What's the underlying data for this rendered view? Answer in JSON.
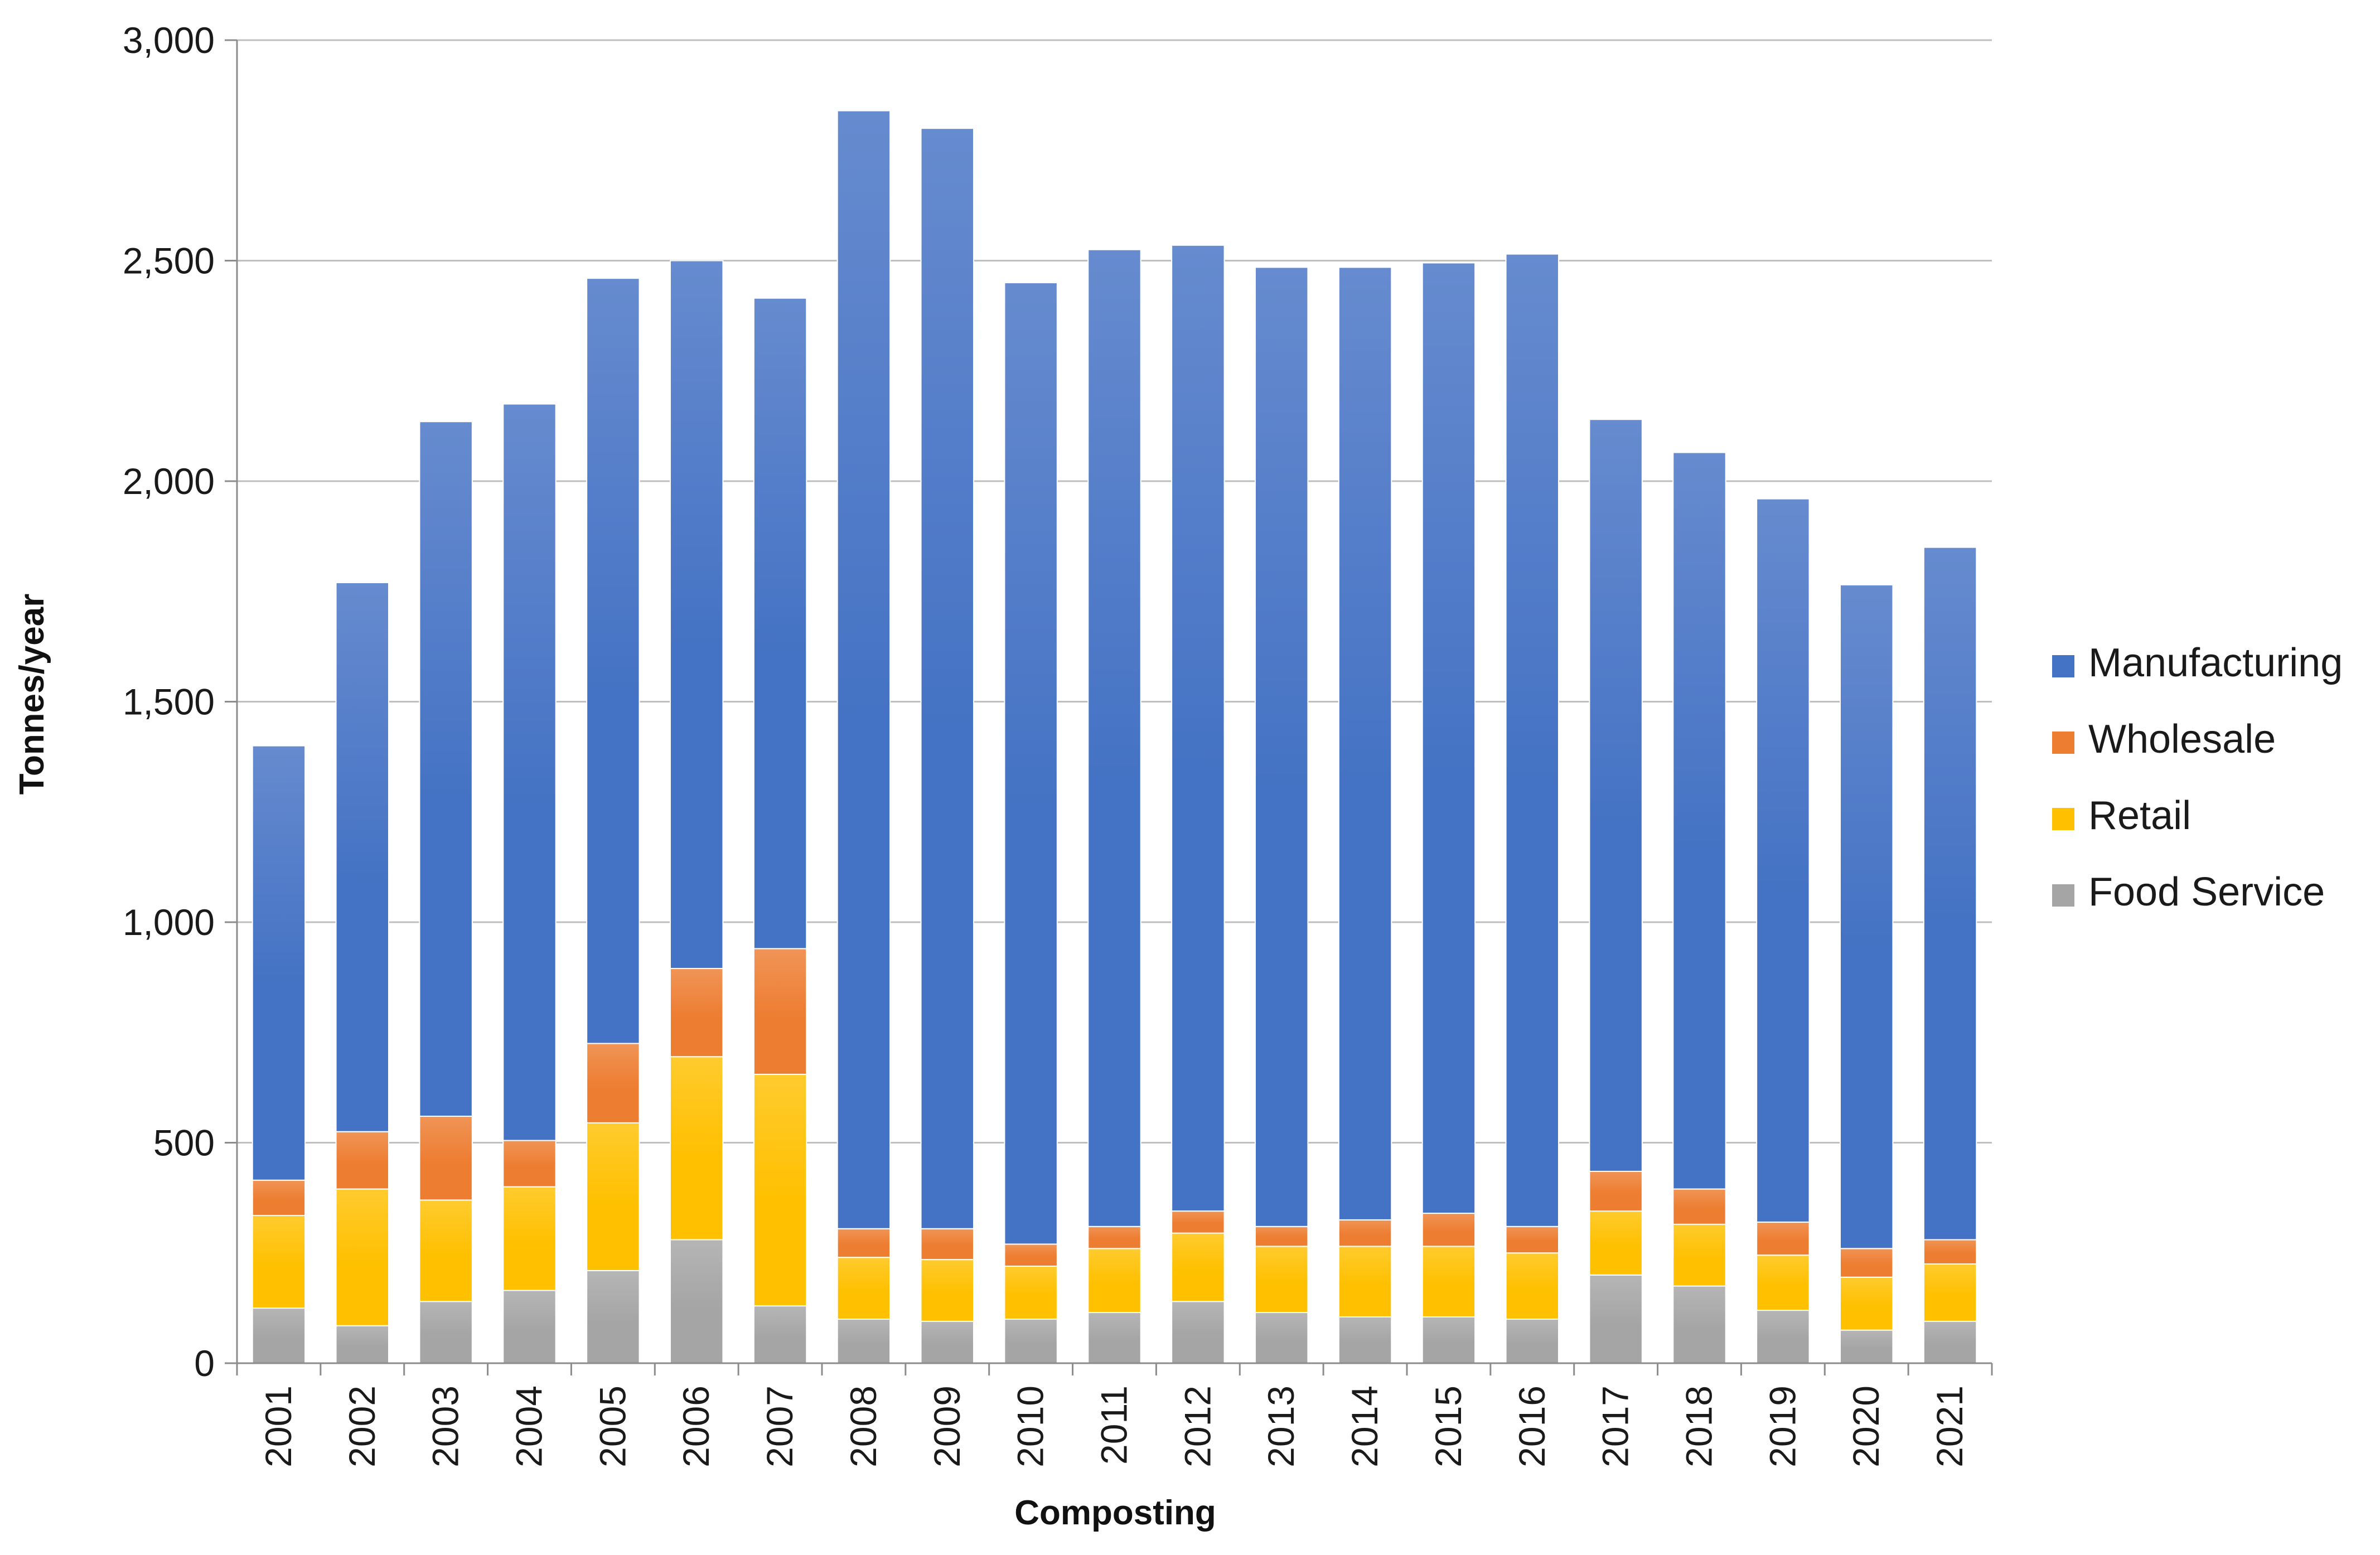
{
  "chart_data": {
    "type": "bar",
    "stacked": true,
    "title": "",
    "xlabel": "Composting",
    "ylabel": "Tonnes/year",
    "ylim": [
      0,
      3000
    ],
    "yticks": [
      0,
      500,
      1000,
      1500,
      2000,
      2500,
      3000
    ],
    "ytick_labels": [
      "0",
      "500",
      "1,000",
      "1,500",
      "2,000",
      "2,500",
      "3,000"
    ],
    "grid": true,
    "legend_position": "right",
    "categories": [
      "2001",
      "2002",
      "2003",
      "2004",
      "2005",
      "2006",
      "2007",
      "2008",
      "2009",
      "2010",
      "2011",
      "2012",
      "2013",
      "2014",
      "2015",
      "2016",
      "2017",
      "2018",
      "2019",
      "2020",
      "2021"
    ],
    "series": [
      {
        "name": "Food Service",
        "color": "#a5a5a5",
        "values": [
          125,
          85,
          140,
          165,
          210,
          280,
          130,
          100,
          95,
          100,
          115,
          140,
          115,
          105,
          105,
          100,
          200,
          175,
          120,
          75,
          95
        ]
      },
      {
        "name": "Retail",
        "color": "#ffc000",
        "values": [
          210,
          310,
          230,
          235,
          335,
          415,
          525,
          140,
          140,
          120,
          145,
          155,
          150,
          160,
          160,
          150,
          145,
          140,
          125,
          120,
          130
        ]
      },
      {
        "name": "Wholesale",
        "color": "#ed7d31",
        "values": [
          80,
          130,
          190,
          105,
          180,
          200,
          285,
          65,
          70,
          50,
          50,
          50,
          45,
          60,
          75,
          60,
          90,
          80,
          75,
          65,
          55
        ]
      },
      {
        "name": "Manufacturing",
        "color": "#4472c4",
        "values": [
          985,
          1245,
          1575,
          1670,
          1735,
          1605,
          1475,
          2535,
          2495,
          2180,
          2215,
          2190,
          2175,
          2160,
          2155,
          2205,
          1705,
          1670,
          1640,
          1505,
          1570
        ]
      }
    ],
    "legend_order": [
      "Manufacturing",
      "Wholesale",
      "Retail",
      "Food Service"
    ]
  }
}
